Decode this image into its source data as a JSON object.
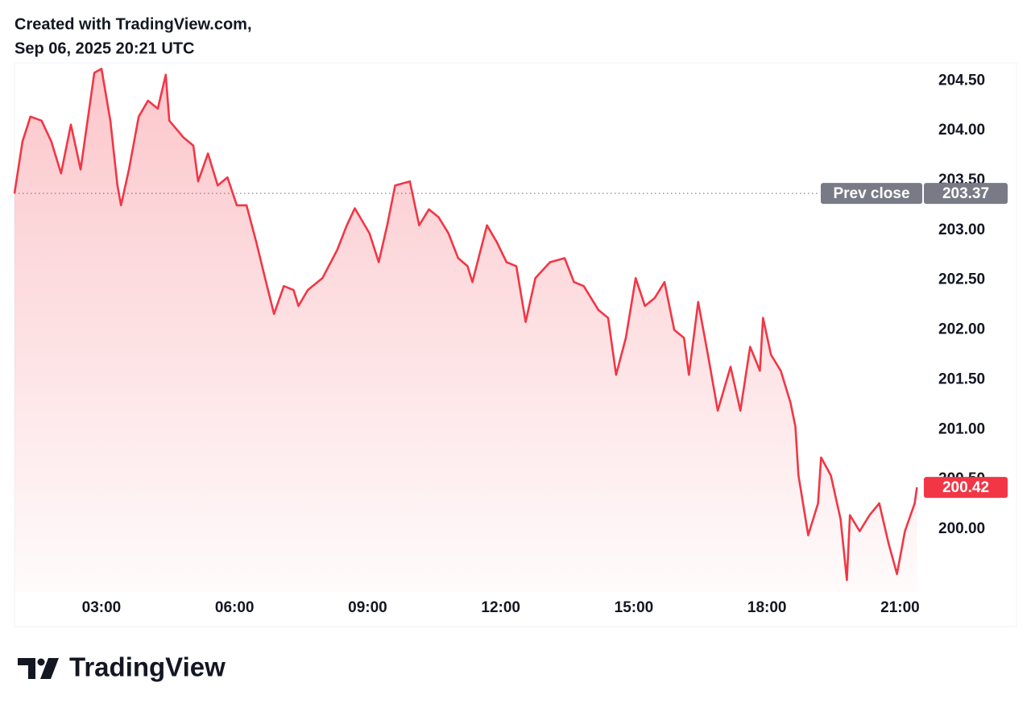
{
  "chart_data": {
    "type": "line",
    "caption": "Created with TradingView.com,",
    "timestamp": "Sep 06, 2025 20:21 UTC",
    "brand": "TradingView",
    "area": true,
    "xlim": [
      1.04,
      21.5
    ],
    "ylim": [
      199.37,
      204.68
    ],
    "xticks": [
      {
        "value": 3,
        "label": "03:00"
      },
      {
        "value": 6,
        "label": "06:00"
      },
      {
        "value": 9,
        "label": "09:00"
      },
      {
        "value": 12,
        "label": "12:00"
      },
      {
        "value": 15,
        "label": "15:00"
      },
      {
        "value": 18,
        "label": "18:00"
      },
      {
        "value": 21,
        "label": "21:00"
      }
    ],
    "yticks": [
      {
        "value": 200,
        "label": "200.00"
      },
      {
        "value": 200.5,
        "label": "200.50"
      },
      {
        "value": 201,
        "label": "201.00"
      },
      {
        "value": 201.5,
        "label": "201.50"
      },
      {
        "value": 202,
        "label": "202.00"
      },
      {
        "value": 202.5,
        "label": "202.50"
      },
      {
        "value": 203,
        "label": "203.00"
      },
      {
        "value": 203.5,
        "label": "203.50"
      },
      {
        "value": 204,
        "label": "204.00"
      },
      {
        "value": 204.5,
        "label": "204.50"
      }
    ],
    "prev_close": {
      "label": "Prev close",
      "value": 203.37,
      "color": "#787b86"
    },
    "x": [
      1.04,
      1.22,
      1.4,
      1.65,
      1.87,
      2.09,
      2.31,
      2.53,
      2.75,
      2.84,
      3.0,
      3.2,
      3.36,
      3.44,
      3.62,
      3.84,
      4.05,
      4.27,
      4.45,
      4.53,
      4.85,
      5.07,
      5.18,
      5.4,
      5.62,
      5.84,
      6.05,
      6.27,
      6.49,
      6.71,
      6.89,
      7.11,
      7.33,
      7.44,
      7.65,
      7.98,
      8.31,
      8.53,
      8.71,
      9.04,
      9.25,
      9.44,
      9.62,
      9.95,
      10.16,
      10.38,
      10.6,
      10.82,
      11.04,
      11.25,
      11.36,
      11.69,
      11.91,
      12.13,
      12.35,
      12.56,
      12.78,
      13.11,
      13.44,
      13.65,
      13.87,
      14.2,
      14.42,
      14.6,
      14.82,
      15.04,
      15.25,
      15.47,
      15.69,
      15.91,
      16.13,
      16.24,
      16.45,
      16.67,
      16.89,
      17.18,
      17.4,
      17.62,
      17.84,
      17.91,
      18.09,
      18.31,
      18.53,
      18.64,
      18.71,
      18.93,
      19.15,
      19.22,
      19.44,
      19.66,
      19.8,
      19.87,
      20.09,
      20.31,
      20.53,
      20.74,
      20.93,
      21.11,
      21.33,
      21.38
    ],
    "series": [
      {
        "color": "#f23645",
        "values": [
          203.37,
          203.89,
          204.14,
          204.1,
          203.89,
          203.57,
          204.06,
          203.61,
          204.3,
          204.58,
          204.62,
          204.1,
          203.45,
          203.25,
          203.61,
          204.14,
          204.3,
          204.22,
          204.56,
          204.1,
          203.93,
          203.85,
          203.49,
          203.77,
          203.45,
          203.53,
          203.25,
          203.25,
          202.88,
          202.48,
          202.16,
          202.44,
          202.4,
          202.24,
          202.4,
          202.52,
          202.8,
          203.05,
          203.22,
          202.97,
          202.68,
          203.05,
          203.45,
          203.49,
          203.05,
          203.21,
          203.13,
          202.97,
          202.72,
          202.64,
          202.48,
          203.05,
          202.88,
          202.68,
          202.64,
          202.08,
          202.52,
          202.68,
          202.72,
          202.48,
          202.44,
          202.2,
          202.12,
          201.55,
          201.92,
          202.52,
          202.24,
          202.32,
          202.48,
          202.0,
          201.92,
          201.55,
          202.28,
          201.75,
          201.19,
          201.63,
          201.19,
          201.83,
          201.59,
          202.12,
          201.75,
          201.59,
          201.27,
          201.03,
          200.54,
          199.94,
          200.26,
          200.72,
          200.54,
          200.1,
          199.49,
          200.14,
          199.98,
          200.14,
          200.26,
          199.86,
          199.55,
          199.98,
          200.26,
          200.42
        ]
      }
    ]
  }
}
